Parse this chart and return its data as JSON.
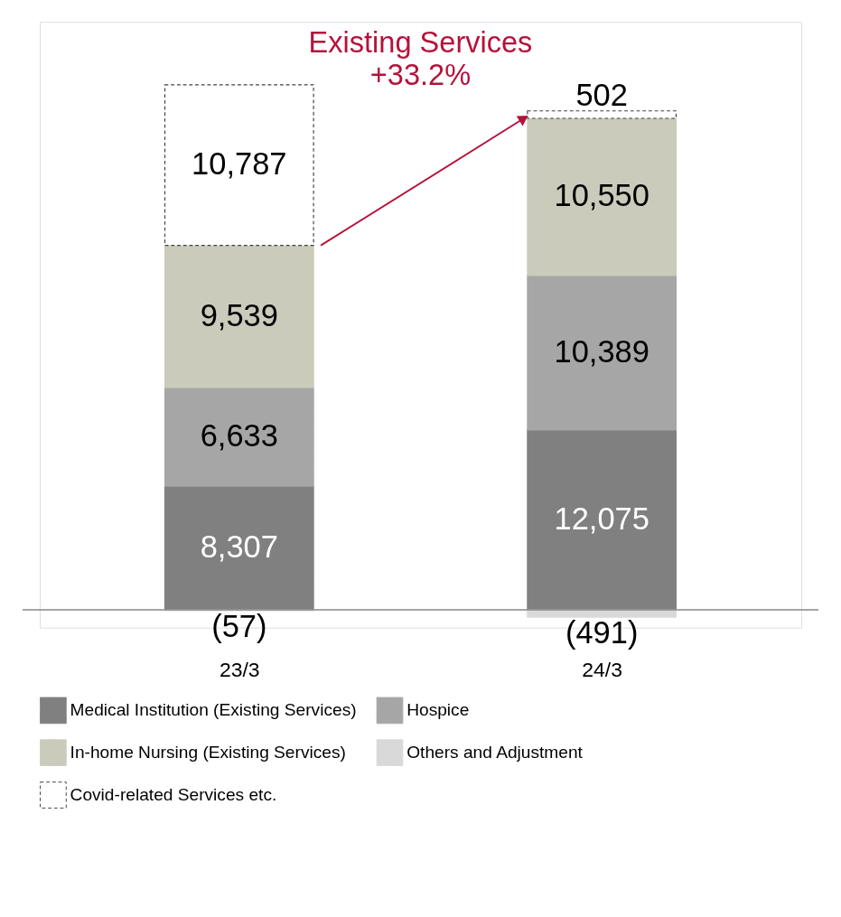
{
  "chart_data": {
    "type": "bar",
    "stacked": true,
    "categories": [
      "23/3",
      "24/3"
    ],
    "series": [
      {
        "name": "Medical Institution (Existing Services)",
        "color": "#808080",
        "values": [
          8307,
          12075
        ],
        "value_labels": [
          "8,307",
          "12,075"
        ]
      },
      {
        "name": "Hospice",
        "color": "#a6a6a6",
        "values": [
          6633,
          10389
        ],
        "value_labels": [
          "6,633",
          "10,389"
        ]
      },
      {
        "name": "In-home Nursing (Existing Services)",
        "color": "#cbcbbb",
        "values": [
          9539,
          10550
        ],
        "value_labels": [
          "9,539",
          "10,550"
        ]
      },
      {
        "name": "Others and Adjustment",
        "color": "#d9d9d9",
        "values": [
          -57,
          -491
        ],
        "value_labels": [
          "(57)",
          "(491)"
        ]
      },
      {
        "name": "Covid-related Services etc.",
        "color": "#404040",
        "line_style": "dashed",
        "values": [
          10787,
          502
        ],
        "value_labels": [
          "10,787",
          "502"
        ]
      }
    ],
    "annotations": [
      "Existing Services\n+33.2%"
    ],
    "legend": "bottom",
    "grid": false
  }
}
